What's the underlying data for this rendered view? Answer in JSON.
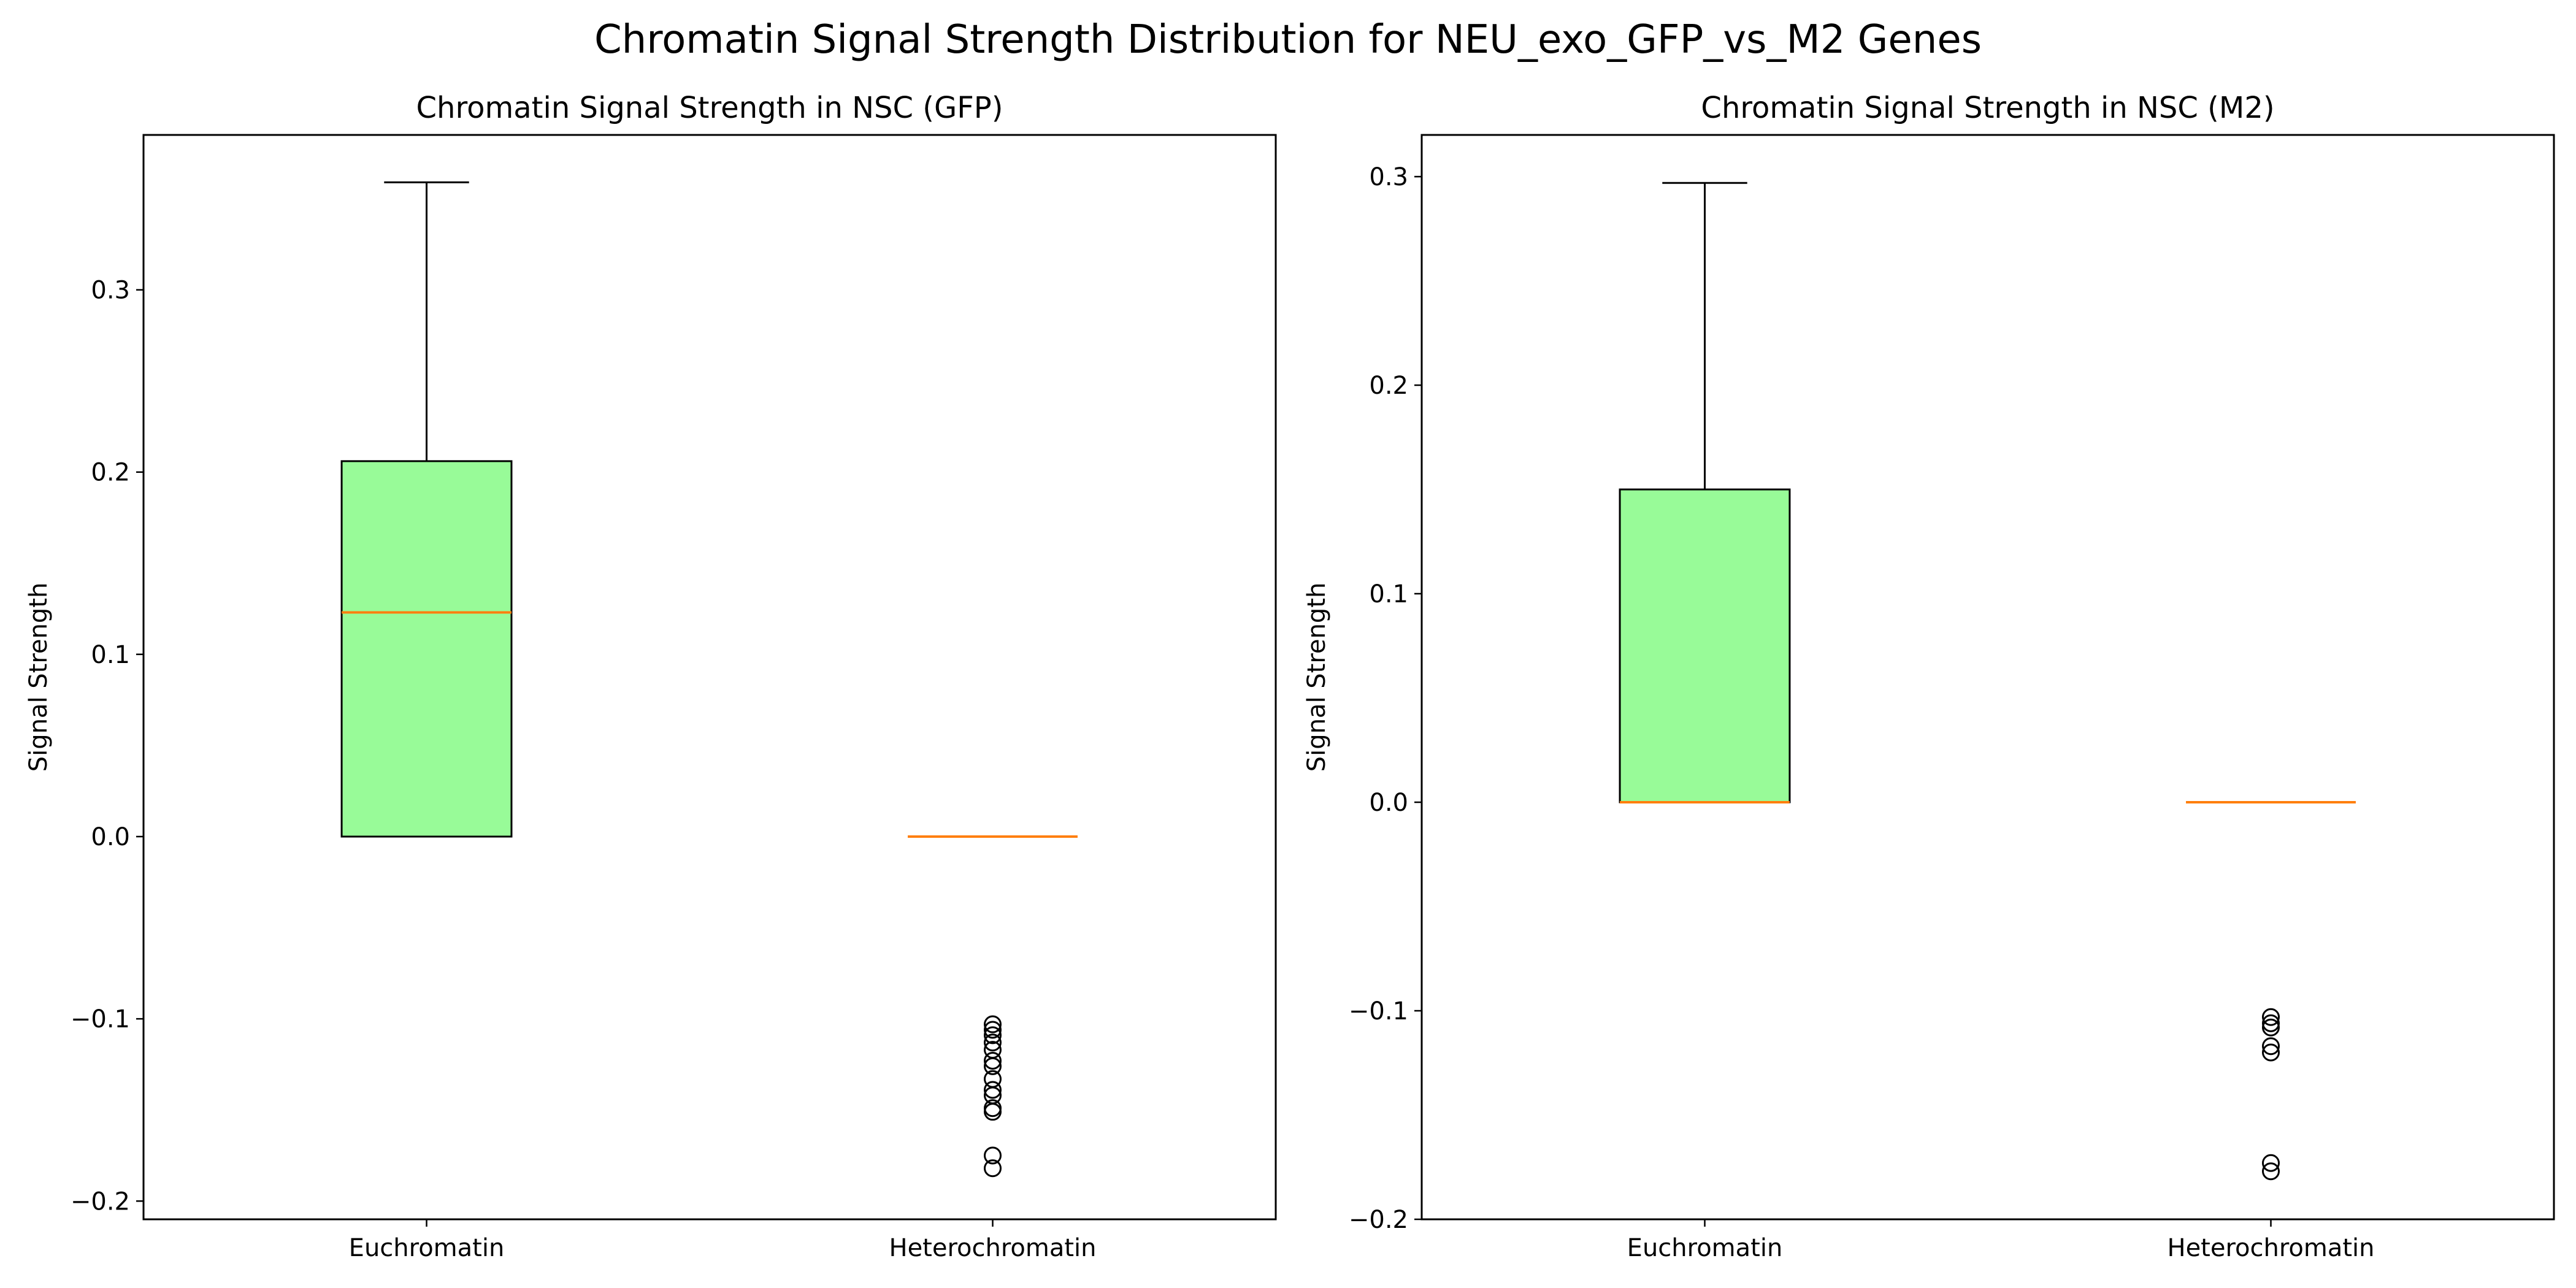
{
  "figure": {
    "title": "Chromatin Signal Strength Distribution for NEU_exo_GFP_vs_M2 Genes"
  },
  "style": {
    "box_fill": "#98fb98",
    "median_color": "#ff7f0e",
    "outline_color": "#000000"
  },
  "chart_data": [
    {
      "type": "box",
      "title": "Chromatin Signal Strength in NSC (GFP)",
      "xlabel": "",
      "ylabel": "Signal Strength",
      "categories": [
        "Euchromatin",
        "Heterochromatin"
      ],
      "ylim": [
        -0.21,
        0.385
      ],
      "yticks": [
        -0.2,
        -0.1,
        0.0,
        0.1,
        0.2,
        0.3
      ],
      "ytick_labels": [
        "−0.2",
        "−0.1",
        "0.0",
        "0.1",
        "0.2",
        "0.3"
      ],
      "grid": false,
      "boxes": [
        {
          "category": "Euchromatin",
          "whislo": 0.0,
          "q1": 0.0,
          "median": 0.123,
          "q3": 0.206,
          "whishi": 0.359,
          "fliers": []
        },
        {
          "category": "Heterochromatin",
          "whislo": 0.0,
          "q1": 0.0,
          "median": 0.0,
          "q3": 0.0,
          "whishi": 0.0,
          "fliers": [
            -0.103,
            -0.106,
            -0.109,
            -0.113,
            -0.117,
            -0.123,
            -0.126,
            -0.133,
            -0.139,
            -0.142,
            -0.149,
            -0.151,
            -0.175,
            -0.182
          ]
        }
      ]
    },
    {
      "type": "box",
      "title": "Chromatin Signal Strength in NSC (M2)",
      "xlabel": "",
      "ylabel": "Signal Strength",
      "categories": [
        "Euchromatin",
        "Heterochromatin"
      ],
      "ylim": [
        -0.2,
        0.32
      ],
      "yticks": [
        -0.2,
        -0.1,
        0.0,
        0.1,
        0.2,
        0.3
      ],
      "ytick_labels": [
        "−0.2",
        "−0.1",
        "0.0",
        "0.1",
        "0.2",
        "0.3"
      ],
      "grid": false,
      "boxes": [
        {
          "category": "Euchromatin",
          "whislo": 0.0,
          "q1": 0.0,
          "median": 0.0,
          "q3": 0.15,
          "whishi": 0.297,
          "fliers": []
        },
        {
          "category": "Heterochromatin",
          "whislo": 0.0,
          "q1": 0.0,
          "median": 0.0,
          "q3": 0.0,
          "whishi": 0.0,
          "fliers": [
            -0.103,
            -0.106,
            -0.108,
            -0.117,
            -0.12,
            -0.173,
            -0.177
          ]
        }
      ]
    }
  ]
}
